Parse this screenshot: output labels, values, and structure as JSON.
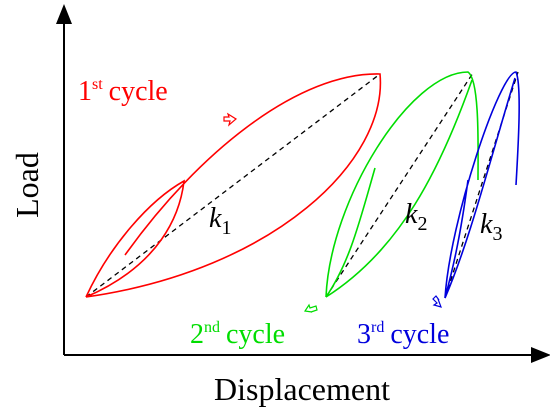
{
  "axes": {
    "y_label": "Load",
    "x_label": "Displacement"
  },
  "cycles": [
    {
      "number": "1",
      "suffix": "st",
      "word": "cycle",
      "color": "#ff0000"
    },
    {
      "number": "2",
      "suffix": "nd",
      "word": "cycle",
      "color": "#00dd00"
    },
    {
      "number": "3",
      "suffix": "rd",
      "word": "cycle",
      "color": "#0000dd"
    }
  ],
  "stiffness": [
    {
      "symbol": "k",
      "subscript": "1"
    },
    {
      "symbol": "k",
      "subscript": "2"
    },
    {
      "symbol": "k",
      "subscript": "3"
    }
  ],
  "colors": {
    "axis": "#000000",
    "secant": "#000000",
    "cycle1": "#ff0000",
    "cycle2": "#00dd00",
    "cycle3": "#0000dd"
  }
}
